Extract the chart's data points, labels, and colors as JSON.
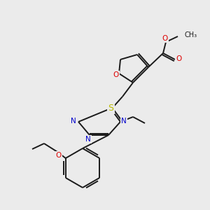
{
  "background_color": "#ebebeb",
  "bond_color": "#1a1a1a",
  "atom_colors": {
    "O": "#dd0000",
    "N": "#0000cc",
    "S": "#bbbb00",
    "C": "#1a1a1a"
  },
  "figsize": [
    3.0,
    3.0
  ],
  "dpi": 100
}
